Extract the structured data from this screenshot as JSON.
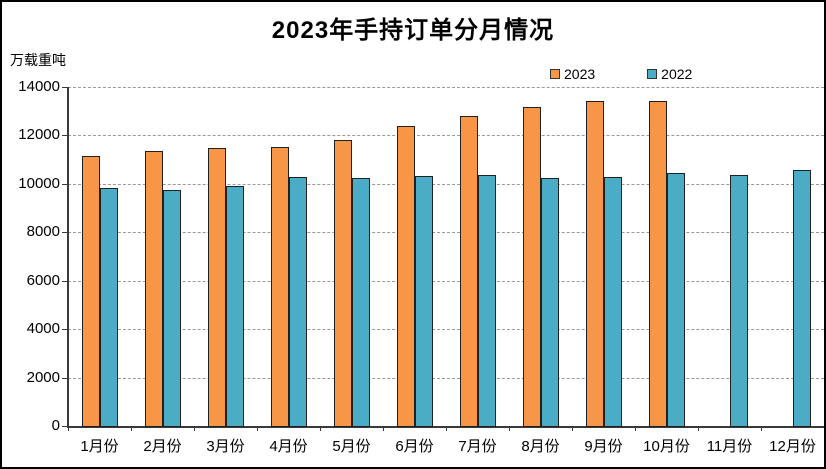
{
  "chart": {
    "y_unit_label": "万载重吨"
  },
  "chart_data": {
    "type": "bar",
    "title": "2023年手持订单分月情况",
    "ylabel": "万载重吨",
    "xlabel": "",
    "categories": [
      "1月份",
      "2月份",
      "3月份",
      "4月份",
      "5月份",
      "6月份",
      "7月份",
      "8月份",
      "9月份",
      "10月份",
      "11月份",
      "12月份"
    ],
    "series": [
      {
        "name": "2023",
        "color": "#F79646",
        "values": [
          11130,
          11340,
          11470,
          11510,
          11800,
          12380,
          12790,
          13160,
          13420,
          13410,
          null,
          null
        ]
      },
      {
        "name": "2022",
        "color": "#4BACC6",
        "values": [
          9830,
          9730,
          9920,
          10300,
          10250,
          10310,
          10380,
          10230,
          10280,
          10450,
          10380,
          10560
        ]
      }
    ],
    "ylim": [
      0,
      14000
    ],
    "yticks": [
      0,
      2000,
      4000,
      6000,
      8000,
      10000,
      12000,
      14000
    ],
    "grid": "horizontal-dashed",
    "legend_position": "top-center"
  }
}
